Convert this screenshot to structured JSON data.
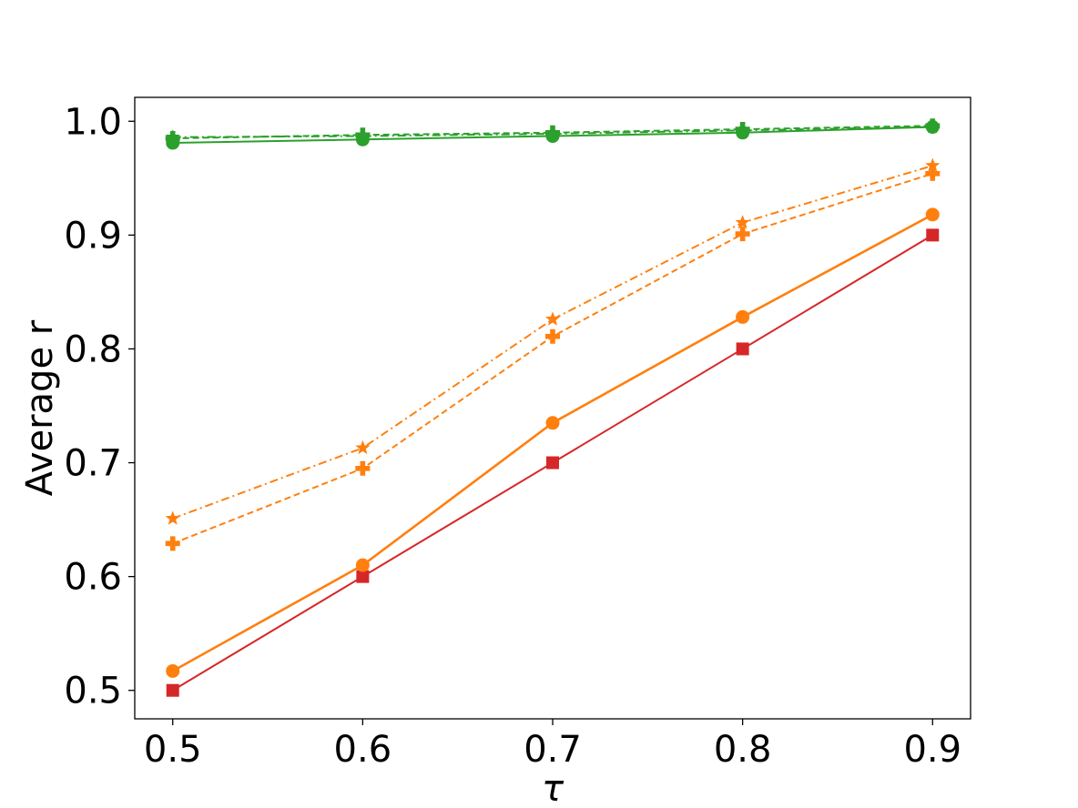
{
  "chart_data": {
    "type": "line",
    "title": "",
    "xlabel": "τ",
    "ylabel": "Average r",
    "x": [
      0.5,
      0.6,
      0.7,
      0.8,
      0.9
    ],
    "x_tick_labels": [
      "0.5",
      "0.6",
      "0.7",
      "0.8",
      "0.9"
    ],
    "y_ticks": [
      0.5,
      0.6,
      0.7,
      0.8,
      0.9,
      1.0
    ],
    "y_tick_labels": [
      "0.5",
      "0.6",
      "0.7",
      "0.8",
      "0.9",
      "1.0"
    ],
    "xlim": [
      0.48,
      0.92
    ],
    "ylim": [
      0.475,
      1.021
    ],
    "grid": false,
    "legend": "none",
    "series": [
      {
        "values": [
          0.5,
          0.6,
          0.7,
          0.8,
          0.9
        ],
        "color": "#d62728",
        "line_style": "solid",
        "marker": "square"
      },
      {
        "values": [
          0.517,
          0.61,
          0.735,
          0.828,
          0.918
        ],
        "color": "#ff7f0e",
        "line_style": "solid",
        "marker": "circle"
      },
      {
        "values": [
          0.629,
          0.695,
          0.811,
          0.901,
          0.954
        ],
        "color": "#ff7f0e",
        "line_style": "dashed",
        "marker": "plus"
      },
      {
        "values": [
          0.651,
          0.713,
          0.826,
          0.911,
          0.961
        ],
        "color": "#ff7f0e",
        "line_style": "dashdot",
        "marker": "star"
      },
      {
        "values": [
          0.981,
          0.984,
          0.987,
          0.99,
          0.995
        ],
        "color": "#2ca02c",
        "line_style": "solid",
        "marker": "circle"
      },
      {
        "values": [
          0.985,
          0.988,
          0.99,
          0.993,
          0.996
        ],
        "color": "#2ca02c",
        "line_style": "dashed",
        "marker": "plus"
      },
      {
        "values": [
          0.986,
          0.987,
          0.989,
          0.992,
          0.995
        ],
        "color": "#2ca02c",
        "line_style": "dashdot",
        "marker": "star"
      }
    ]
  }
}
